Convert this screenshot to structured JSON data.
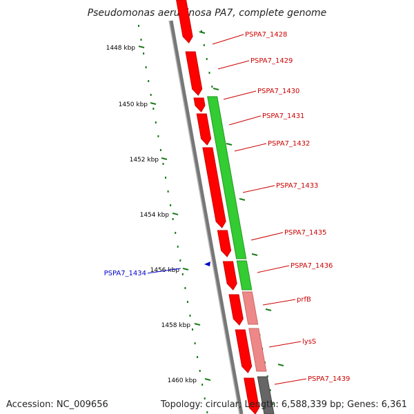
{
  "title": "Pseudomonas aeruginosa PA7, complete genome",
  "accession": "Accession: NC_009656",
  "summary": "Topology: circular; Length: 6,588,339 bp; Genes: 6,361",
  "colors": {
    "backbone": "#777777",
    "forward_gene": "#ff0000",
    "forward_gene_light": "#f08a8a",
    "reverse_gene": "#33cc33",
    "reverse_gene_light": "#ee8888",
    "reverse_gene_dark": "#666666",
    "label_red": "#cc0000",
    "label_blue": "#0000cc",
    "tick_green": "#1a7a1a"
  },
  "ticks": [
    {
      "label": "1448 kbp"
    },
    {
      "label": "1450 kbp"
    },
    {
      "label": "1452 kbp"
    },
    {
      "label": "1454 kbp"
    },
    {
      "label": "1456 kbp"
    },
    {
      "label": "1458 kbp"
    },
    {
      "label": "1460 kbp"
    }
  ],
  "genes": [
    {
      "label": "PSPA7_1428"
    },
    {
      "label": "PSPA7_1429"
    },
    {
      "label": "PSPA7_1430"
    },
    {
      "label": "PSPA7_1431"
    },
    {
      "label": "PSPA7_1432"
    },
    {
      "label": "PSPA7_1433"
    },
    {
      "label": "PSPA7_1435"
    },
    {
      "label": "PSPA7_1436"
    },
    {
      "label": "prfB"
    },
    {
      "label": "lysS"
    },
    {
      "label": "PSPA7_1439"
    },
    {
      "label": "PSPA7_1434"
    }
  ]
}
